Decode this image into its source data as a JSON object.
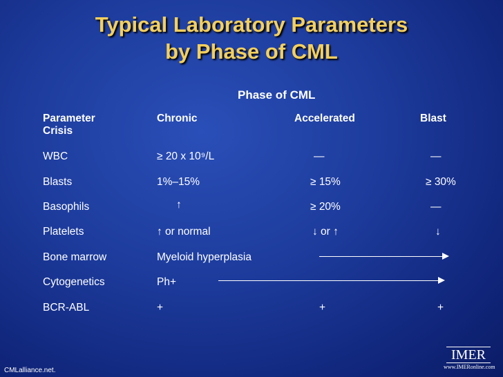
{
  "slide": {
    "title_line1": "Typical Laboratory Parameters",
    "title_line2": "by Phase of CML",
    "phase_header": "Phase of CML"
  },
  "table": {
    "headers": {
      "parameter": "Parameter",
      "crisis": "Crisis",
      "chronic": "Chronic",
      "accelerated": "Accelerated",
      "blast": "Blast"
    },
    "rows": [
      {
        "parameter": "WBC",
        "chronic": "≥ 20 x 10⁹/L",
        "accelerated": "—",
        "blast": "—"
      },
      {
        "parameter": "Blasts",
        "chronic": "1%–15%",
        "accelerated": "≥ 15%",
        "blast": "≥ 30%"
      },
      {
        "parameter": "Basophils",
        "chronic": "↑",
        "accelerated": "≥ 20%",
        "blast": "—"
      },
      {
        "parameter": "Platelets",
        "chronic": "↑ or normal",
        "accelerated": "↓ or ↑",
        "blast": "↓"
      },
      {
        "parameter": "Bone marrow",
        "chronic": "Myeloid hyperplasia",
        "accelerated": "",
        "blast": ""
      },
      {
        "parameter": "Cytogenetics",
        "chronic": "Ph+",
        "accelerated": "",
        "blast": ""
      },
      {
        "parameter": "BCR-ABL",
        "chronic": "+",
        "accelerated": "+",
        "blast": "+"
      }
    ]
  },
  "footer": {
    "source": "CMLalliance.net."
  },
  "logo": {
    "name": "IMER",
    "url": "www.IMERonline.com"
  },
  "colors": {
    "title": "#f3cf5e",
    "text": "#ffffff",
    "background": "#1c3a9a"
  }
}
